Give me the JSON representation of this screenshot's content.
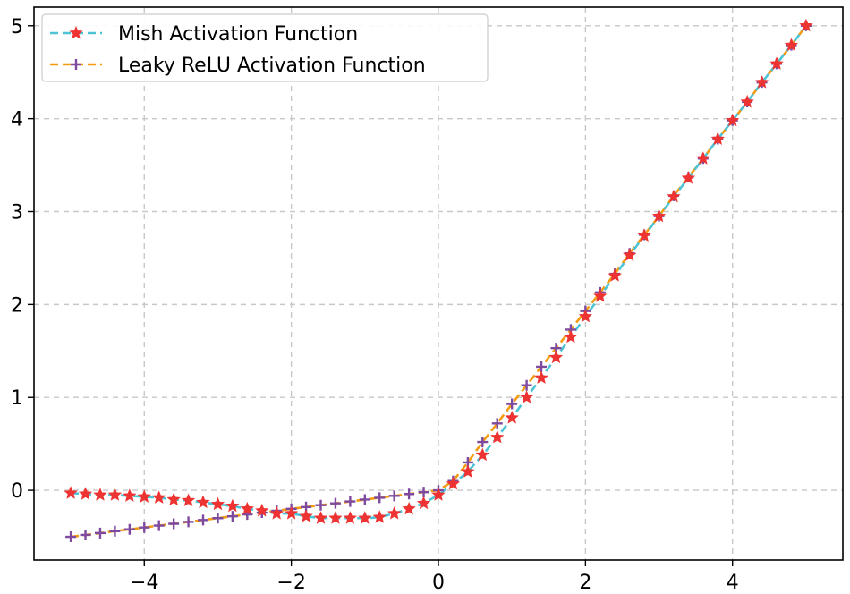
{
  "chart_data": {
    "type": "line",
    "title": "",
    "xlabel": "",
    "ylabel": "",
    "xlim": [
      -5.5,
      5.5
    ],
    "ylim": [
      -0.75,
      5.2
    ],
    "xticks": [
      -4,
      -2,
      0,
      2,
      4
    ],
    "xtick_labels": [
      "−4",
      "−2",
      "0",
      "2",
      "4"
    ],
    "yticks": [
      0,
      1,
      2,
      3,
      4,
      5
    ],
    "ytick_labels": [
      "0",
      "1",
      "2",
      "3",
      "4",
      "5"
    ],
    "grid": true,
    "legend_position": "top-left",
    "x": [
      -5.0,
      -4.8,
      -4.6,
      -4.4,
      -4.2,
      -4.0,
      -3.8,
      -3.6,
      -3.4,
      -3.2,
      -3.0,
      -2.8,
      -2.6,
      -2.4,
      -2.2,
      -2.0,
      -1.8,
      -1.6,
      -1.4,
      -1.2,
      -1.0,
      -0.8,
      -0.6,
      -0.4,
      -0.2,
      0.0,
      0.2,
      0.4,
      0.6,
      0.8,
      1.0,
      1.2,
      1.4,
      1.6,
      1.8,
      2.0,
      2.2,
      2.4,
      2.6,
      2.8,
      3.0,
      3.2,
      3.4,
      3.6,
      3.8,
      4.0,
      4.2,
      4.4,
      4.6,
      4.8,
      5.0
    ],
    "series": [
      {
        "name": "Mish Activation Function",
        "line_color": "#4fc3d6",
        "marker": "star",
        "marker_color": "#ee3333",
        "values": [
          -0.03,
          -0.04,
          -0.05,
          -0.05,
          -0.06,
          -0.07,
          -0.08,
          -0.1,
          -0.11,
          -0.13,
          -0.15,
          -0.17,
          -0.2,
          -0.22,
          -0.25,
          -0.25,
          -0.28,
          -0.3,
          -0.3,
          -0.3,
          -0.3,
          -0.29,
          -0.25,
          -0.2,
          -0.14,
          -0.05,
          0.07,
          0.2,
          0.38,
          0.57,
          0.78,
          1.0,
          1.21,
          1.43,
          1.65,
          1.87,
          2.09,
          2.31,
          2.53,
          2.74,
          2.95,
          3.16,
          3.36,
          3.57,
          3.78,
          3.98,
          4.18,
          4.39,
          4.59,
          4.79,
          5.0
        ]
      },
      {
        "name": "Leaky ReLU  Activation Function",
        "line_color": "#f39c12",
        "marker": "plus",
        "marker_color": "#7e4aa0",
        "values": [
          -0.5,
          -0.48,
          -0.46,
          -0.44,
          -0.42,
          -0.4,
          -0.38,
          -0.36,
          -0.34,
          -0.32,
          -0.3,
          -0.28,
          -0.26,
          -0.24,
          -0.22,
          -0.2,
          -0.18,
          -0.16,
          -0.14,
          -0.12,
          -0.1,
          -0.08,
          -0.06,
          -0.04,
          -0.02,
          0.0,
          0.1,
          0.3,
          0.52,
          0.72,
          0.93,
          1.13,
          1.33,
          1.53,
          1.73,
          1.93,
          2.13,
          2.33,
          2.55,
          2.75,
          2.95,
          3.17,
          3.37,
          3.57,
          3.78,
          3.98,
          4.18,
          4.39,
          4.59,
          4.79,
          5.0
        ]
      }
    ]
  }
}
